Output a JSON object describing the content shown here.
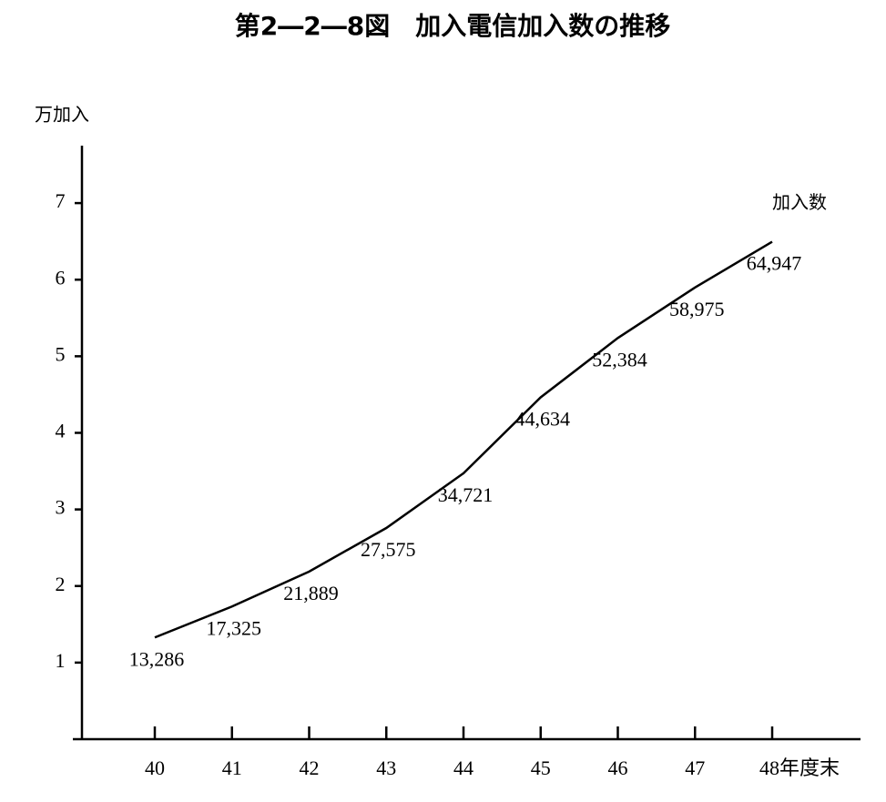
{
  "chart_data": {
    "type": "line",
    "title": "第2―2―8図　加入電信加入数の推移",
    "y_axis_label": "万加入",
    "categories": [
      "40",
      "41",
      "42",
      "43",
      "44",
      "45",
      "46",
      "47",
      "48年度末"
    ],
    "series": [
      {
        "name": "加入数",
        "color": "#000000",
        "values": [
          1.3286,
          1.7325,
          2.1889,
          2.7575,
          3.4721,
          4.4634,
          5.2384,
          5.8975,
          6.4947
        ],
        "value_labels": [
          "13,286",
          "17,325",
          "21,889",
          "27,575",
          "34,721",
          "44,634",
          "52,384",
          "58,975",
          "64,947"
        ]
      }
    ],
    "ylim": [
      0,
      7.75
    ],
    "yticks": [
      1,
      2,
      3,
      4,
      5,
      6,
      7
    ],
    "grid": false
  }
}
